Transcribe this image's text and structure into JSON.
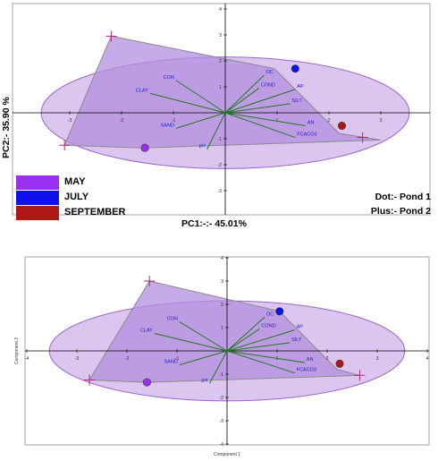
{
  "chart_data": [
    {
      "type": "scatter",
      "plot_kind": "pca-biplot",
      "xlabel": "PC1:-:- 45.01%",
      "ylabel": "PC2:- 35.90 %",
      "xlim": [
        -4,
        4
      ],
      "ylim": [
        -4,
        4
      ],
      "x_ticks": [
        "-3",
        "-2",
        "-1",
        "1",
        "2",
        "3"
      ],
      "y_ticks": [
        "-3",
        "-2",
        "-1",
        "1",
        "2",
        "3",
        "4"
      ],
      "confidence_ellipse": {
        "cx": 0,
        "cy": 0,
        "rx": 3.55,
        "ry": 2.15
      },
      "loadings": [
        {
          "name": "OC",
          "x": 0.75,
          "y": 1.45
        },
        {
          "name": "CON",
          "x": -0.95,
          "y": 1.25
        },
        {
          "name": "COND",
          "x": 0.65,
          "y": 0.95
        },
        {
          "name": "AP",
          "x": 1.35,
          "y": 0.9
        },
        {
          "name": "CLAY",
          "x": -1.45,
          "y": 0.75
        },
        {
          "name": "SILT",
          "x": 1.25,
          "y": 0.35
        },
        {
          "name": "SAND",
          "x": -0.95,
          "y": -0.6
        },
        {
          "name": "AN",
          "x": 1.55,
          "y": -0.5
        },
        {
          "name": "FCACO3",
          "x": 1.35,
          "y": -0.95
        },
        {
          "name": "pH",
          "x": -0.35,
          "y": -1.4
        }
      ],
      "hull": [
        [
          -2.2,
          2.95
        ],
        [
          0.95,
          1.7
        ],
        [
          2.2,
          -0.8
        ],
        [
          3.0,
          -1.05
        ],
        [
          -1.6,
          -1.35
        ],
        [
          -3.1,
          -1.25
        ]
      ],
      "scores_dot": [
        {
          "season": "MAY",
          "x": -1.55,
          "y": -1.35
        },
        {
          "season": "JULY",
          "x": 1.35,
          "y": 1.7
        },
        {
          "season": "SEPTEMBER",
          "x": 2.25,
          "y": -0.5
        }
      ],
      "scores_plus": [
        {
          "season": "MAY",
          "x": -3.1,
          "y": -1.25
        },
        {
          "season": "JULY",
          "x": -2.2,
          "y": 2.95
        },
        {
          "season": "SEPTEMBER",
          "x": 2.65,
          "y": -0.95
        }
      ],
      "legend": [
        "MAY",
        "JULY",
        "SEPTEMBER"
      ],
      "marker_key": [
        "Dot:- Pond 1",
        "Plus:- Pond 2"
      ]
    },
    {
      "type": "scatter",
      "plot_kind": "pca-biplot",
      "xlabel": "Component 1",
      "ylabel": "Component 2",
      "xlim": [
        -4,
        4
      ],
      "ylim": [
        -4,
        4
      ],
      "x_ticks": [
        "-4",
        "-3",
        "-2",
        "-1",
        "1",
        "2",
        "3",
        "4"
      ],
      "y_ticks": [
        "-4",
        "-3",
        "-2",
        "-1",
        "1",
        "2",
        "3",
        "4"
      ],
      "confidence_ellipse": {
        "cx": 0,
        "cy": 0,
        "rx": 3.55,
        "ry": 2.15
      },
      "loadings": [
        {
          "name": "OC",
          "x": 0.75,
          "y": 1.45
        },
        {
          "name": "CON",
          "x": -0.95,
          "y": 1.25
        },
        {
          "name": "COND",
          "x": 0.65,
          "y": 0.95
        },
        {
          "name": "AP",
          "x": 1.35,
          "y": 0.9
        },
        {
          "name": "CLAY",
          "x": -1.45,
          "y": 0.75
        },
        {
          "name": "SILT",
          "x": 1.25,
          "y": 0.35
        },
        {
          "name": "SAND",
          "x": -0.95,
          "y": -0.6
        },
        {
          "name": "AN",
          "x": 1.55,
          "y": -0.5
        },
        {
          "name": "FCACO3",
          "x": 1.35,
          "y": -0.95
        },
        {
          "name": "pH",
          "x": -0.35,
          "y": -1.4
        }
      ],
      "hull": [
        [
          -1.55,
          3.0
        ],
        [
          1.05,
          1.7
        ],
        [
          2.2,
          -0.8
        ],
        [
          2.65,
          -1.05
        ],
        [
          -1.6,
          -1.35
        ],
        [
          -2.75,
          -1.25
        ]
      ],
      "scores_dot": [
        {
          "season": "MAY",
          "x": -1.6,
          "y": -1.35
        },
        {
          "season": "JULY",
          "x": 1.05,
          "y": 1.7
        },
        {
          "season": "SEPTEMBER",
          "x": 2.25,
          "y": -0.55
        }
      ],
      "scores_plus": [
        {
          "season": "MAY",
          "x": -2.75,
          "y": -1.25
        },
        {
          "season": "JULY",
          "x": -1.55,
          "y": 3.0
        },
        {
          "season": "SEPTEMBER",
          "x": 2.65,
          "y": -1.05
        }
      ]
    }
  ],
  "colors": {
    "ellipse_fill": "#dcc6f0",
    "ellipse_stroke": "#9a66c8",
    "hull_fill": "#b48ee0",
    "hull_stroke": "#8a8a8a",
    "loading_line": "#1f7a1f",
    "loading_label": "#1a1acc",
    "may": "#9b2ff0",
    "july": "#1010ee",
    "september": "#b01818",
    "frame": "#a0a0a0",
    "axis": "#000000"
  }
}
